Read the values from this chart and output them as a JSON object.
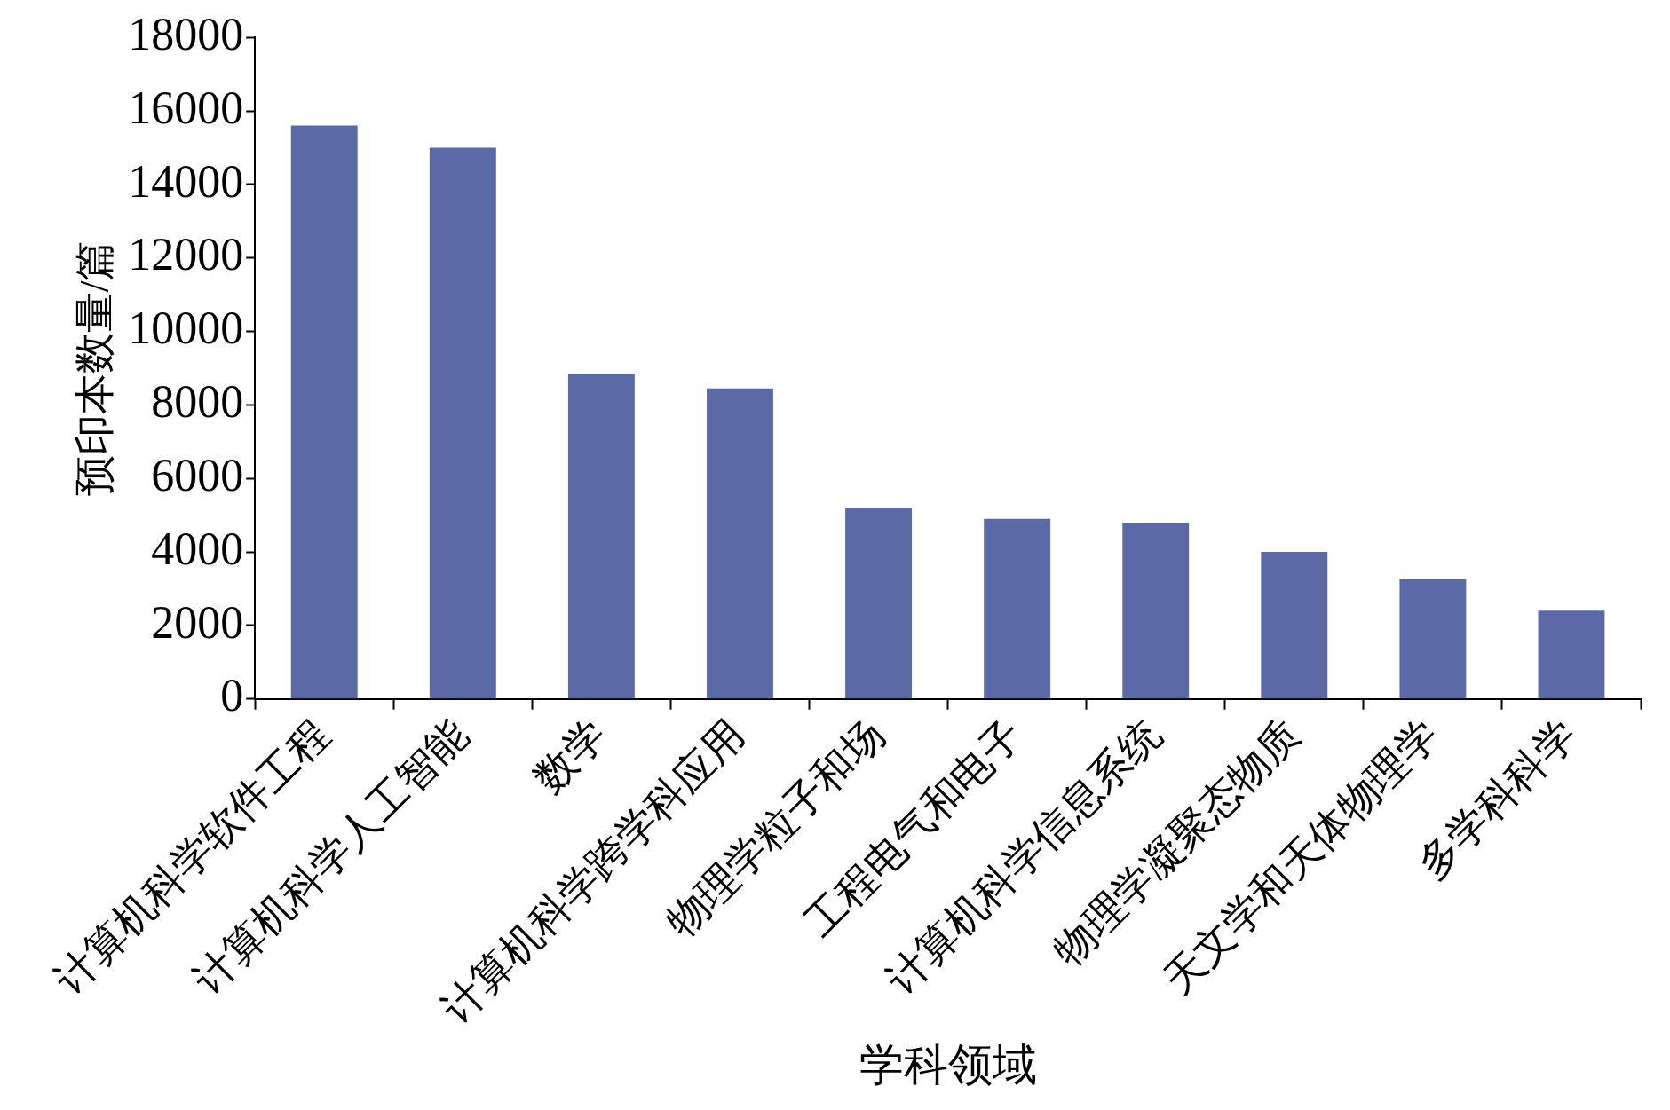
{
  "chart_data": {
    "type": "bar",
    "xlabel": "学科领域",
    "ylabel": "预印本数量/篇",
    "categories": [
      "计算机科学软件工程",
      "计算机科学人工智能",
      "数学",
      "计算机科学跨学科应用",
      "物理学粒子和场",
      "工程电气和电子",
      "计算机科学信息系统",
      "物理学凝聚态物质",
      "天文学和天体物理学",
      "多学科科学"
    ],
    "values": [
      15600,
      15000,
      8850,
      8450,
      5200,
      4900,
      4800,
      4000,
      3250,
      2400
    ],
    "color": "#5b6aa6",
    "ylim": [
      0,
      18000
    ],
    "yticks": [
      0,
      2000,
      4000,
      6000,
      8000,
      10000,
      12000,
      14000,
      16000,
      18000
    ],
    "grid": false,
    "legend": false
  }
}
